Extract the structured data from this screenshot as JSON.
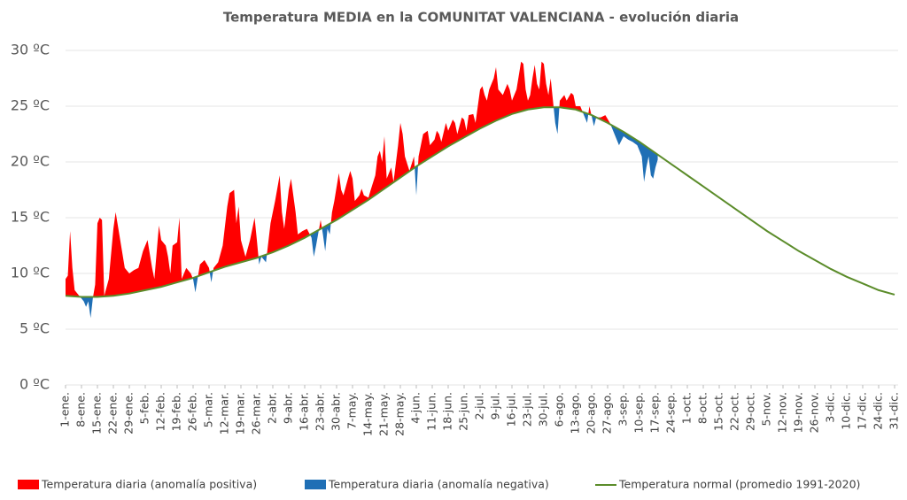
{
  "chart_data": {
    "type": "anomaly-area",
    "title": "Temperatura MEDIA en la COMUNITAT VALENCIANA - evolución diaria",
    "xlim": [
      1,
      365
    ],
    "ylim": [
      0,
      30
    ],
    "yticks": [
      {
        "value": 0,
        "label": "0 ºC"
      },
      {
        "value": 5,
        "label": "5 ºC"
      },
      {
        "value": 10,
        "label": "10 ºC"
      },
      {
        "value": 15,
        "label": "15 ºC"
      },
      {
        "value": 20,
        "label": "20 ºC"
      },
      {
        "value": 25,
        "label": "25 ºC"
      },
      {
        "value": 30,
        "label": "30 ºC"
      }
    ],
    "xticks": [
      {
        "value": 1,
        "label": "1-ene."
      },
      {
        "value": 8,
        "label": "8-ene."
      },
      {
        "value": 15,
        "label": "15-ene."
      },
      {
        "value": 22,
        "label": "22-ene."
      },
      {
        "value": 29,
        "label": "29-ene."
      },
      {
        "value": 36,
        "label": "5-feb."
      },
      {
        "value": 43,
        "label": "12-feb."
      },
      {
        "value": 50,
        "label": "19-feb."
      },
      {
        "value": 57,
        "label": "26-feb."
      },
      {
        "value": 64,
        "label": "5-mar."
      },
      {
        "value": 71,
        "label": "12-mar."
      },
      {
        "value": 78,
        "label": "19-mar."
      },
      {
        "value": 85,
        "label": "26-mar."
      },
      {
        "value": 92,
        "label": "2-abr."
      },
      {
        "value": 99,
        "label": "9-abr."
      },
      {
        "value": 106,
        "label": "16-abr."
      },
      {
        "value": 113,
        "label": "23-abr."
      },
      {
        "value": 120,
        "label": "30-abr."
      },
      {
        "value": 127,
        "label": "7-may."
      },
      {
        "value": 134,
        "label": "14-may."
      },
      {
        "value": 141,
        "label": "21-may."
      },
      {
        "value": 148,
        "label": "28-may."
      },
      {
        "value": 155,
        "label": "4-jun."
      },
      {
        "value": 162,
        "label": "11-jun."
      },
      {
        "value": 169,
        "label": "18-jun."
      },
      {
        "value": 176,
        "label": "25-jun."
      },
      {
        "value": 183,
        "label": "2-jul."
      },
      {
        "value": 190,
        "label": "9-jul."
      },
      {
        "value": 197,
        "label": "16-jul."
      },
      {
        "value": 204,
        "label": "23-jul."
      },
      {
        "value": 211,
        "label": "30-jul."
      },
      {
        "value": 218,
        "label": "6-ago."
      },
      {
        "value": 225,
        "label": "13-ago."
      },
      {
        "value": 232,
        "label": "20-ago."
      },
      {
        "value": 239,
        "label": "27-ago."
      },
      {
        "value": 246,
        "label": "3-sep."
      },
      {
        "value": 253,
        "label": "10-sep."
      },
      {
        "value": 260,
        "label": "17-sep."
      },
      {
        "value": 267,
        "label": "24-sep."
      },
      {
        "value": 274,
        "label": "1-oct."
      },
      {
        "value": 281,
        "label": "8-oct."
      },
      {
        "value": 288,
        "label": "15-oct."
      },
      {
        "value": 295,
        "label": "22-oct."
      },
      {
        "value": 302,
        "label": "29-oct."
      },
      {
        "value": 309,
        "label": "5-nov."
      },
      {
        "value": 316,
        "label": "12-nov."
      },
      {
        "value": 323,
        "label": "19-nov."
      },
      {
        "value": 330,
        "label": "26-nov."
      },
      {
        "value": 337,
        "label": "3-dic."
      },
      {
        "value": 344,
        "label": "10-dic."
      },
      {
        "value": 351,
        "label": "17-dic."
      },
      {
        "value": 358,
        "label": "24-dic."
      },
      {
        "value": 365,
        "label": "31-dic."
      }
    ],
    "grid": true,
    "legend": "bottom",
    "series": [
      {
        "name": "Temperatura diaria (anomalía positiva)",
        "color": "#ff0000"
      },
      {
        "name": "Temperatura diaria (anomalía negativa)",
        "color": "#1f6fb5"
      },
      {
        "name": "Temperatura normal (promedio 1991-2020)",
        "color": "#5b8c2a",
        "x": [
          1,
          8,
          15,
          22,
          29,
          36,
          43,
          50,
          57,
          64,
          71,
          78,
          85,
          92,
          99,
          106,
          113,
          120,
          127,
          134,
          141,
          148,
          155,
          162,
          169,
          176,
          183,
          190,
          197,
          204,
          211,
          218,
          225,
          232,
          239,
          246,
          253,
          260,
          267,
          274,
          281,
          288,
          295,
          302,
          309,
          316,
          323,
          330,
          337,
          344,
          351,
          358,
          365
        ],
        "values": [
          8.0,
          7.9,
          7.9,
          8.0,
          8.2,
          8.5,
          8.8,
          9.2,
          9.6,
          10.1,
          10.6,
          11.0,
          11.4,
          11.9,
          12.5,
          13.2,
          14.0,
          14.8,
          15.7,
          16.6,
          17.6,
          18.6,
          19.6,
          20.5,
          21.4,
          22.2,
          23.0,
          23.7,
          24.3,
          24.7,
          24.9,
          24.9,
          24.7,
          24.2,
          23.5,
          22.7,
          21.8,
          20.8,
          19.8,
          18.8,
          17.8,
          16.8,
          15.8,
          14.8,
          13.8,
          12.9,
          12.0,
          11.2,
          10.4,
          9.7,
          9.1,
          8.5,
          8.1
        ]
      }
    ],
    "actual": {
      "x": [
        1,
        2,
        3,
        4,
        5,
        7,
        9,
        10,
        11,
        12,
        13,
        14,
        15,
        16,
        17,
        18,
        20,
        22,
        23,
        25,
        27,
        29,
        31,
        33,
        35,
        37,
        39,
        40,
        42,
        43,
        45,
        46,
        47,
        48,
        50,
        51,
        52,
        54,
        56,
        57,
        58,
        60,
        62,
        64,
        65,
        66,
        68,
        70,
        72,
        73,
        75,
        76,
        77,
        78,
        80,
        82,
        84,
        85,
        86,
        87,
        89,
        91,
        93,
        95,
        96,
        97,
        99,
        100,
        102,
        103,
        105,
        107,
        109,
        110,
        111,
        113,
        114,
        115,
        116,
        117,
        118,
        119,
        121,
        122,
        123,
        125,
        126,
        127,
        128,
        130,
        131,
        132,
        134,
        135,
        137,
        138,
        139,
        140,
        141,
        142,
        144,
        145,
        147,
        148,
        149,
        150,
        152,
        154,
        155,
        156,
        158,
        160,
        161,
        163,
        164,
        165,
        166,
        168,
        169,
        171,
        172,
        173,
        175,
        176,
        177,
        178,
        180,
        181,
        183,
        184,
        185,
        186,
        187,
        189,
        190,
        191,
        193,
        195,
        196,
        197,
        199,
        201,
        202,
        203,
        204,
        205,
        206,
        207,
        208,
        209,
        210,
        211,
        212,
        213,
        214,
        216,
        217,
        218,
        220,
        221,
        223,
        224,
        225,
        227,
        229,
        230,
        231,
        233,
        234,
        236,
        238,
        240,
        242,
        244,
        246,
        248,
        250,
        252,
        254,
        255,
        256,
        257,
        258,
        259,
        260,
        261
      ],
      "values": [
        9.5,
        9.8,
        13.8,
        10.5,
        8.5,
        8.0,
        7.5,
        7.0,
        7.5,
        6.0,
        7.8,
        9.0,
        14.5,
        15.0,
        14.8,
        8.0,
        9.5,
        14.0,
        15.5,
        13.0,
        10.5,
        10.0,
        10.3,
        10.5,
        12.0,
        13.0,
        10.5,
        9.5,
        14.3,
        13.0,
        12.5,
        11.5,
        10.0,
        12.5,
        12.8,
        15.0,
        9.5,
        10.5,
        10.0,
        9.5,
        8.3,
        10.8,
        11.2,
        10.5,
        9.2,
        10.5,
        11.0,
        12.5,
        16.0,
        17.2,
        17.5,
        14.5,
        16.0,
        13.0,
        11.5,
        13.0,
        15.0,
        13.0,
        10.8,
        11.5,
        11.0,
        14.5,
        16.5,
        18.8,
        15.5,
        14.0,
        17.5,
        18.5,
        15.5,
        13.5,
        13.8,
        14.0,
        13.2,
        11.5,
        12.5,
        14.8,
        13.5,
        12.0,
        14.0,
        13.5,
        15.5,
        16.5,
        19.0,
        17.5,
        17.0,
        18.5,
        19.2,
        18.5,
        16.5,
        17.0,
        17.6,
        17.0,
        16.8,
        17.5,
        18.8,
        20.5,
        21.0,
        20.0,
        22.3,
        18.5,
        19.5,
        18.2,
        21.5,
        23.5,
        22.5,
        20.5,
        19.2,
        20.5,
        17.0,
        20.5,
        22.5,
        22.8,
        21.5,
        22.0,
        22.8,
        22.5,
        21.8,
        23.5,
        22.8,
        23.8,
        23.5,
        22.5,
        24.0,
        23.8,
        22.8,
        24.2,
        24.3,
        23.5,
        26.5,
        26.8,
        26.0,
        25.5,
        26.5,
        27.5,
        28.5,
        26.5,
        26.0,
        27.0,
        26.5,
        25.5,
        26.5,
        29.0,
        28.8,
        26.5,
        25.5,
        26.0,
        27.5,
        28.7,
        27.0,
        26.5,
        29.0,
        28.8,
        27.0,
        26.0,
        27.5,
        23.5,
        22.5,
        25.5,
        26.0,
        25.5,
        26.2,
        26.0,
        25.0,
        25.0,
        24.0,
        23.5,
        25.0,
        23.2,
        24.0,
        24.0,
        24.2,
        23.5,
        22.5,
        21.5,
        22.3,
        22.0,
        21.8,
        21.5,
        20.5,
        18.2,
        19.5,
        20.5,
        18.8,
        18.5,
        19.5,
        20.2
      ]
    }
  }
}
